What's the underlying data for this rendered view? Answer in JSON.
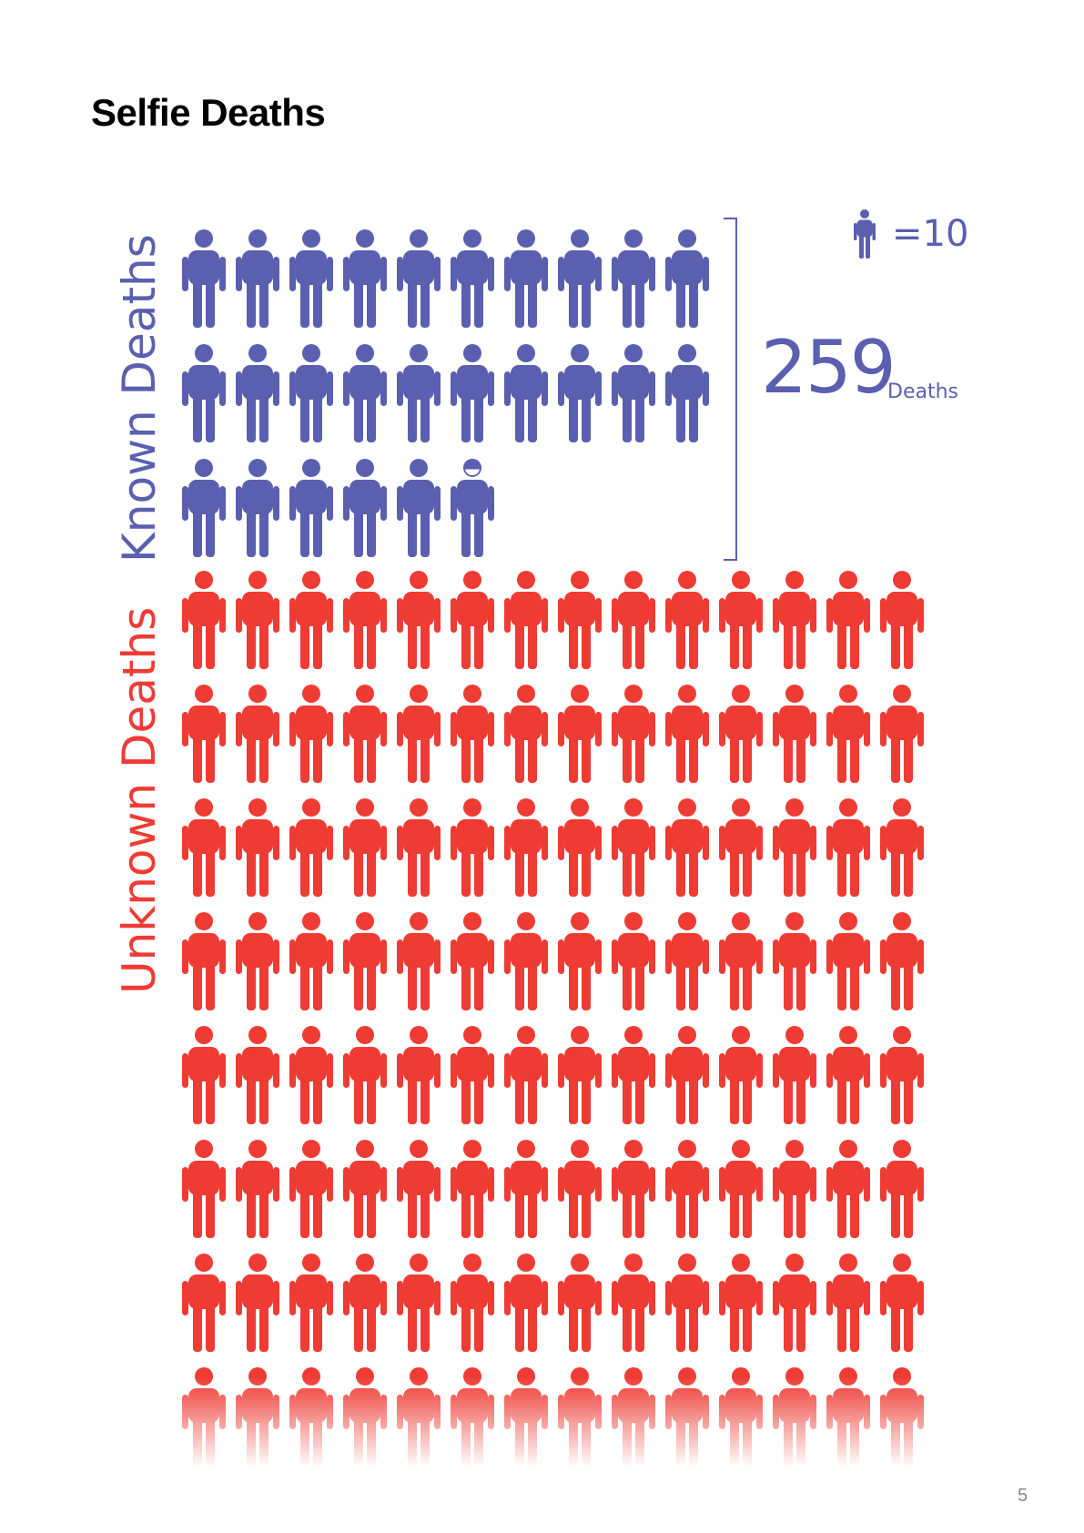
{
  "page": {
    "title": "Selfie Deaths",
    "page_number": "5"
  },
  "colors": {
    "known": "#5a5fb0",
    "unknown": "#ee3b33"
  },
  "legend": {
    "icon": "person-icon",
    "equals_text": "=10"
  },
  "total": {
    "value": "259",
    "unit": "Deaths"
  },
  "chart_data": {
    "type": "pictogram",
    "unit_per_icon": 10,
    "series": [
      {
        "name": "Known Deaths",
        "value": 259,
        "icons": 25.9
      },
      {
        "name": "Unknown Deaths",
        "icons_visible": 112,
        "continues_beyond_view": true
      }
    ]
  }
}
